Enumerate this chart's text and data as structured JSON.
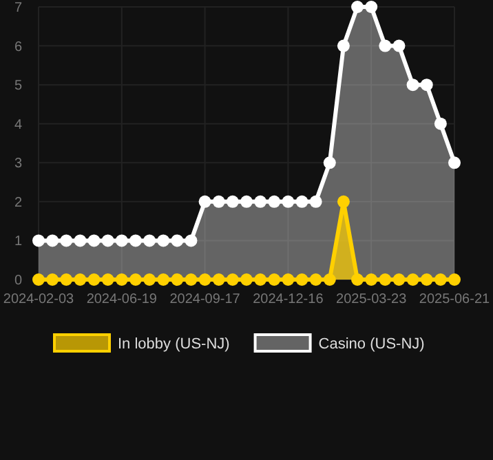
{
  "chart_data": {
    "type": "area",
    "categories": [
      "2024-02-03",
      null,
      null,
      null,
      null,
      null,
      "2024-06-19",
      null,
      null,
      null,
      null,
      null,
      "2024-09-17",
      null,
      null,
      null,
      null,
      null,
      "2024-12-16",
      null,
      null,
      null,
      null,
      null,
      "2025-03-23",
      null,
      null,
      null,
      null,
      null,
      "2025-06-21"
    ],
    "series": [
      {
        "name": "In lobby (US-NJ)",
        "color": "#ffd000",
        "values": [
          0,
          0,
          0,
          0,
          0,
          0,
          0,
          0,
          0,
          0,
          0,
          0,
          0,
          0,
          0,
          0,
          0,
          0,
          0,
          0,
          0,
          0,
          2,
          0,
          0,
          0,
          0,
          0,
          0,
          0,
          0
        ]
      },
      {
        "name": "Casino (US-NJ)",
        "color": "#ffffff",
        "values": [
          1,
          1,
          1,
          1,
          1,
          1,
          1,
          1,
          1,
          1,
          1,
          1,
          2,
          2,
          2,
          2,
          2,
          2,
          2,
          2,
          2,
          3,
          6,
          7,
          7,
          6,
          6,
          5,
          5,
          4,
          3
        ]
      }
    ],
    "ylim": [
      0,
      7
    ],
    "yticks": [
      0,
      1,
      2,
      3,
      4,
      5,
      6,
      7
    ],
    "grid": true,
    "legend": "bottom",
    "marker": "circle",
    "line_style": "solid"
  }
}
